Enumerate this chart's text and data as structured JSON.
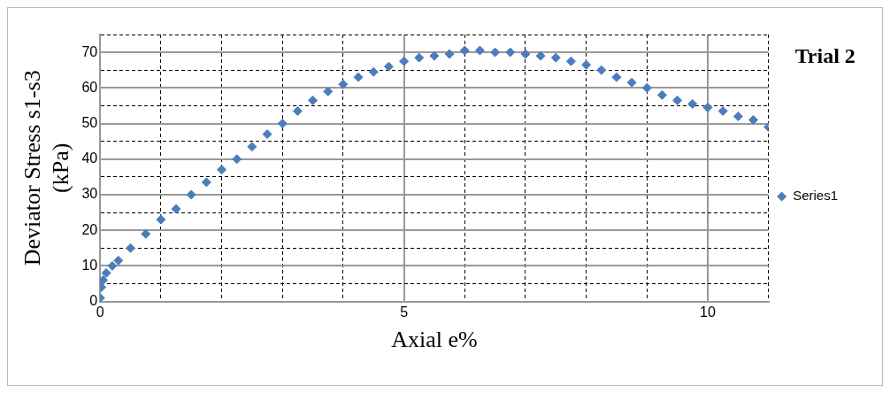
{
  "chart_data": {
    "type": "scatter",
    "title": "Trial 2",
    "xlabel": "Axial e%",
    "ylabel": "Deviator Stress s1-s3 (kPa)",
    "x": [
      0,
      0.02,
      0.05,
      0.1,
      0.2,
      0.3,
      0.5,
      0.75,
      1,
      1.25,
      1.5,
      1.75,
      2,
      2.25,
      2.5,
      2.75,
      3,
      3.25,
      3.5,
      3.75,
      4,
      4.25,
      4.5,
      4.75,
      5,
      5.25,
      5.5,
      5.75,
      6,
      6.25,
      6.5,
      6.75,
      7,
      7.25,
      7.5,
      7.75,
      8,
      8.25,
      8.5,
      8.75,
      9,
      9.25,
      9.5,
      9.75,
      10,
      10.25,
      10.5,
      10.75,
      11
    ],
    "series": [
      {
        "name": "Series1",
        "color": "#4a7ebb",
        "values": [
          1,
          4,
          6,
          8,
          10,
          11.5,
          15,
          19,
          23,
          26,
          30,
          33.5,
          37,
          40,
          43.5,
          47,
          50,
          53.5,
          56.5,
          59,
          61,
          63,
          64.5,
          66,
          67.5,
          68.5,
          69,
          69.5,
          70.5,
          70.5,
          70,
          70,
          69.5,
          69,
          68.5,
          67.5,
          66.5,
          65,
          63,
          61.5,
          60,
          58,
          56.5,
          55.5,
          54.5,
          53.5,
          52,
          51,
          49
        ]
      }
    ],
    "xlim": [
      0,
      11
    ],
    "xticks": [
      0,
      {
        "value": 1,
        "label": null
      },
      {
        "value": 2,
        "label": null
      },
      {
        "value": 3,
        "label": null
      },
      {
        "value": 4,
        "label": null
      },
      5,
      {
        "value": 6,
        "label": null
      },
      {
        "value": 7,
        "label": null
      },
      {
        "value": 8,
        "label": null
      },
      {
        "value": 9,
        "label": null
      },
      10,
      {
        "value": 11,
        "label": null
      }
    ],
    "ylim": [
      0,
      75
    ],
    "yticks": [
      0,
      {
        "value": 5,
        "label": null
      },
      10,
      {
        "value": 15,
        "label": null
      },
      20,
      {
        "value": 25,
        "label": null
      },
      30,
      {
        "value": 35,
        "label": null
      },
      40,
      {
        "value": 45,
        "label": null
      },
      50,
      {
        "value": 55,
        "label": null
      },
      60,
      {
        "value": 65,
        "label": null
      },
      70,
      {
        "value": 75,
        "label": null
      }
    ],
    "grid": true,
    "legend": "right",
    "marker": "diamond"
  }
}
